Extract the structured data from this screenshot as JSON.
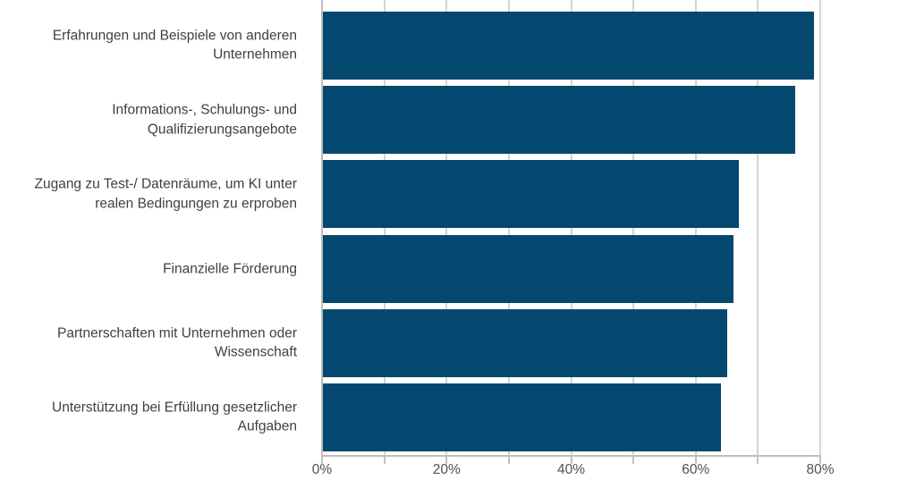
{
  "chart_data": {
    "type": "bar",
    "orientation": "horizontal",
    "title": "",
    "xlabel": "",
    "ylabel": "",
    "grid": true,
    "legend": false,
    "categories": [
      "Erfahrungen und Beispiele von anderen Unternehmen",
      "Informations-, Schulungs- und Qualifizierungsangebote",
      "Zugang zu Test-/ Datenräume, um KI unter realen Bedingungen zu erproben",
      "Finanzielle Förderung",
      "Partnerschaften mit Unternehmen oder Wissenschaft",
      "Unterstützung bei Erfüllung gesetzlicher Aufgaben"
    ],
    "category_display_lines": [
      "Erfahrungen und Beispiele von anderen\nUnternehmen",
      "Informations-, Schulungs- und\nQualifizierungsangebote",
      "Zugang zu Test-/ Datenräume, um KI unter\nrealen Bedingungen zu erproben",
      "Finanzielle Förderung",
      "Partnerschaften mit Unternehmen oder\nWissenschaft",
      "Unterstützung bei Erfüllung gesetzlicher\nAufgaben"
    ],
    "values": [
      79,
      76,
      67,
      66,
      65,
      64
    ],
    "unit": "%",
    "x_axis": {
      "min": 0,
      "max": 80,
      "minor_step": 10,
      "labeled_ticks": [
        0,
        20,
        40,
        60,
        80
      ],
      "tick_labels": [
        "0%",
        "20%",
        "40%",
        "60%",
        "80%"
      ]
    },
    "colors": {
      "bar": "#05486F",
      "gridline": "#d4d4d4",
      "axis_line": "#bdbdbd",
      "tick": "#c2c2c2",
      "category_text": "#3f3f3f",
      "tick_text": "#4f4f4f",
      "background": "#ffffff"
    }
  }
}
